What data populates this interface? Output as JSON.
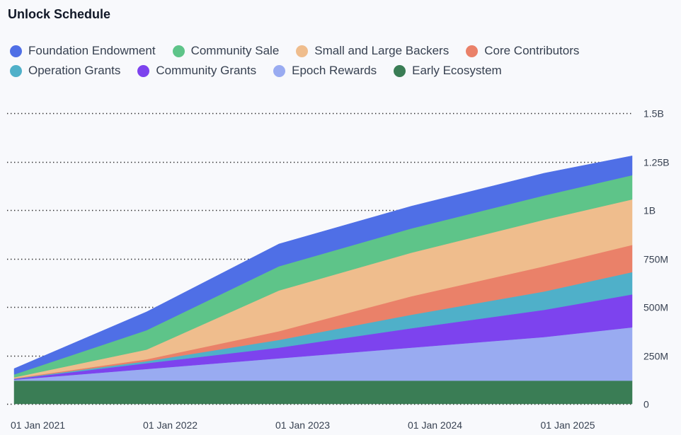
{
  "title": "Unlock Schedule",
  "legend": [
    {
      "name": "Foundation Endowment",
      "color": "#4f6fe6"
    },
    {
      "name": "Community Sale",
      "color": "#5ec489"
    },
    {
      "name": "Small and Large Backers",
      "color": "#efbd8d"
    },
    {
      "name": "Core Contributors",
      "color": "#ea8169"
    },
    {
      "name": "Operation Grants",
      "color": "#4fb0c9"
    },
    {
      "name": "Community Grants",
      "color": "#7d43ee"
    },
    {
      "name": "Epoch Rewards",
      "color": "#99abf1"
    },
    {
      "name": "Early Ecosystem",
      "color": "#3a7d55"
    }
  ],
  "chart_data": {
    "type": "area",
    "stacked": true,
    "title": "Unlock Schedule",
    "xlabel": "",
    "ylabel": "",
    "x": [
      "2021-01-01",
      "2022-01-01",
      "2023-01-01",
      "2024-01-01",
      "2025-01-01",
      "2025-09-01"
    ],
    "x_tick_labels": [
      "01 Jan 2021",
      "01 Jan 2022",
      "01 Jan 2023",
      "01 Jan 2024",
      "01 Jan 2025"
    ],
    "x_range": [
      "2021-01-01",
      "2025-09-01"
    ],
    "y_tick_values": [
      0,
      250000000,
      500000000,
      750000000,
      1000000000,
      1250000000,
      1500000000
    ],
    "y_tick_labels": [
      "0",
      "250M",
      "500M",
      "750M",
      "1B",
      "1.25B",
      "1.5B"
    ],
    "ylim": [
      0,
      1500000000
    ],
    "y_axis_position": "right",
    "grid": "horizontal dotted",
    "legend_position": "top",
    "series": [
      {
        "name": "Early Ecosystem",
        "color": "#3a7d55",
        "values": [
          120000000,
          120000000,
          120000000,
          120000000,
          120000000,
          120000000
        ]
      },
      {
        "name": "Epoch Rewards",
        "color": "#99abf1",
        "values": [
          5000000,
          60000000,
          115000000,
          170000000,
          225000000,
          275000000
        ]
      },
      {
        "name": "Community Grants",
        "color": "#7d43ee",
        "values": [
          3000000,
          30000000,
          55000000,
          100000000,
          140000000,
          170000000
        ]
      },
      {
        "name": "Operation Grants",
        "color": "#4fb0c9",
        "values": [
          2000000,
          10000000,
          40000000,
          70000000,
          95000000,
          115000000
        ]
      },
      {
        "name": "Core Contributors",
        "color": "#ea8169",
        "values": [
          2000000,
          10000000,
          45000000,
          95000000,
          130000000,
          140000000
        ]
      },
      {
        "name": "Small and Large Backers",
        "color": "#efbd8d",
        "values": [
          5000000,
          50000000,
          210000000,
          225000000,
          240000000,
          235000000
        ]
      },
      {
        "name": "Community Sale",
        "color": "#5ec489",
        "values": [
          15000000,
          100000000,
          125000000,
          125000000,
          125000000,
          125000000
        ]
      },
      {
        "name": "Foundation Endowment",
        "color": "#4f6fe6",
        "values": [
          30000000,
          95000000,
          115000000,
          115000000,
          115000000,
          100000000
        ]
      }
    ]
  }
}
